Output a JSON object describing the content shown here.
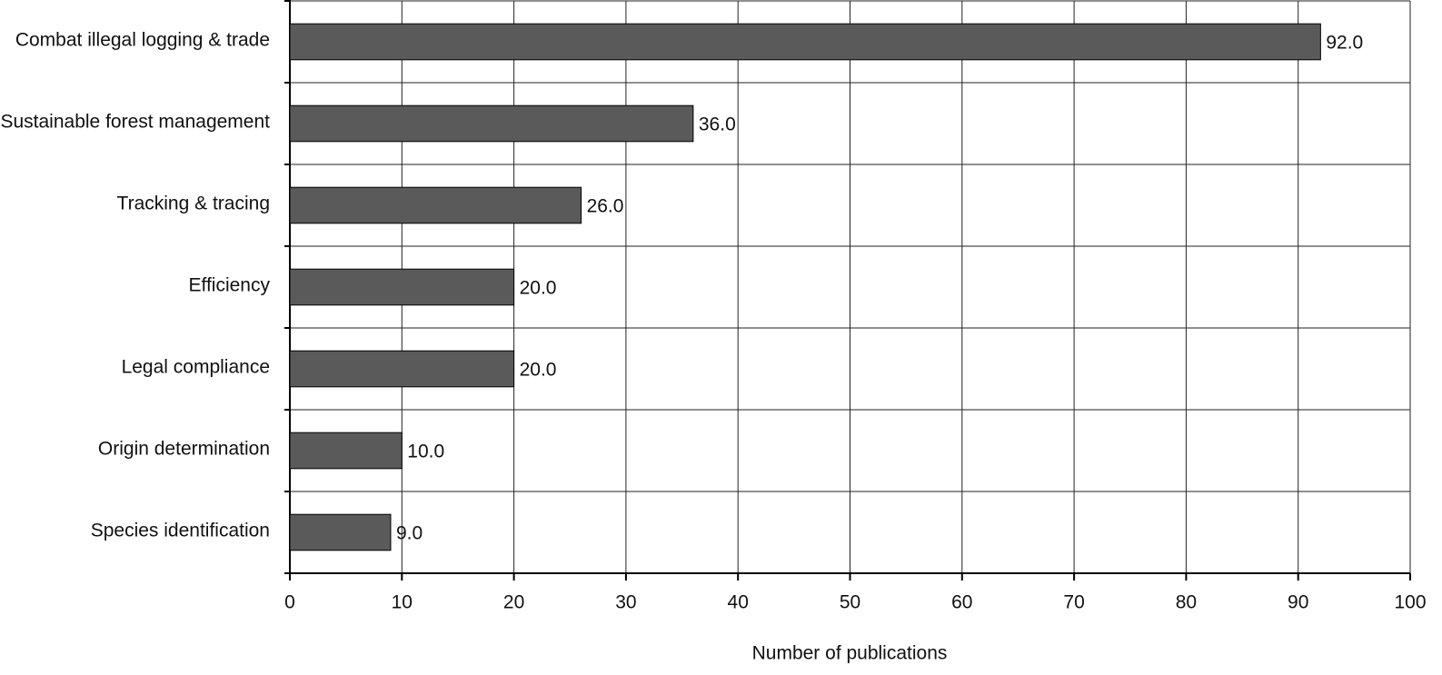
{
  "chart_data": {
    "type": "bar",
    "orientation": "horizontal",
    "x_label": "Number of publications",
    "categories": [
      "Combat illegal logging & trade",
      "Sustainable forest management",
      "Tracking & tracing",
      "Efficiency",
      "Legal compliance",
      "Origin determination",
      "Species identification"
    ],
    "values": [
      92,
      36,
      26,
      20,
      20,
      10,
      9
    ],
    "value_labels": [
      "92.0",
      "36.0",
      "26.0",
      "20.0",
      "20.0",
      "10.0",
      "9.0"
    ],
    "color": "#5a5a5a",
    "xlim": [
      0,
      100
    ],
    "xticks": [
      0,
      10,
      20,
      30,
      40,
      50,
      60,
      70,
      80,
      90,
      100
    ],
    "grid": true
  }
}
